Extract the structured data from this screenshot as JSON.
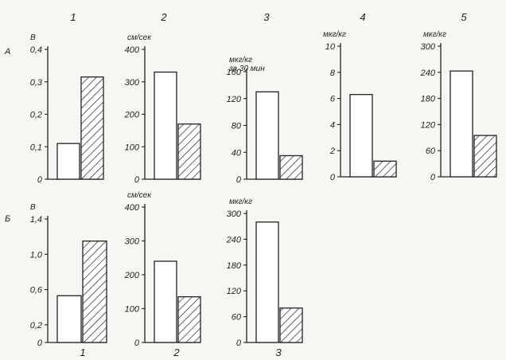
{
  "colors": {
    "ink": "#222222",
    "paper": "#f7f6f2",
    "bar_open": "#ffffff"
  },
  "row_labels": [
    "А",
    "Б"
  ],
  "bottom_numbers": [
    "1",
    "2",
    "3"
  ],
  "chart_data": [
    {
      "type": "bar",
      "row": "А",
      "number": "1",
      "ylabel": "В",
      "ylim": [
        0,
        0.4
      ],
      "ticks": [
        "0",
        "0,1",
        "0,2",
        "0,3",
        "0,4"
      ],
      "series": [
        {
          "pattern": "open",
          "values": [
            0.11
          ]
        },
        {
          "pattern": "hatched",
          "values": [
            0.315
          ]
        }
      ]
    },
    {
      "type": "bar",
      "row": "А",
      "number": "2",
      "ylabel": "см/сек",
      "ylim": [
        0,
        400
      ],
      "ticks": [
        "0",
        "100",
        "200",
        "300",
        "400"
      ],
      "series": [
        {
          "pattern": "open",
          "values": [
            330
          ]
        },
        {
          "pattern": "hatched",
          "values": [
            170
          ]
        }
      ]
    },
    {
      "type": "bar",
      "row": "А",
      "number": "3",
      "ylabel": "мкг/кг",
      "ylabel2": "за 30 мин",
      "ylim": [
        0,
        160
      ],
      "ticks": [
        "0",
        "40",
        "80",
        "120",
        "160"
      ],
      "series": [
        {
          "pattern": "open",
          "values": [
            130
          ]
        },
        {
          "pattern": "hatched",
          "values": [
            35
          ]
        }
      ]
    },
    {
      "type": "bar",
      "row": "А",
      "number": "4",
      "ylabel": "мкг/кг",
      "ylim": [
        0,
        10
      ],
      "ticks": [
        "0",
        "2",
        "4",
        "6",
        "8",
        "10"
      ],
      "series": [
        {
          "pattern": "open",
          "values": [
            6.3
          ]
        },
        {
          "pattern": "hatched",
          "values": [
            1.2
          ]
        }
      ]
    },
    {
      "type": "bar",
      "row": "А",
      "number": "5",
      "ylabel": "мкг/кг",
      "ylim": [
        0,
        300
      ],
      "ticks": [
        "0",
        "60",
        "120",
        "180",
        "240",
        "300"
      ],
      "series": [
        {
          "pattern": "open",
          "values": [
            243
          ]
        },
        {
          "pattern": "hatched",
          "values": [
            95
          ]
        }
      ]
    },
    {
      "type": "bar",
      "row": "Б",
      "number": "1",
      "ylabel": "В",
      "ylim": [
        0,
        1.4
      ],
      "ticks": [
        "0",
        "0,2",
        "0,6",
        "1,0",
        "1,4"
      ],
      "tick_values": [
        0,
        0.2,
        0.6,
        1.0,
        1.4
      ],
      "series": [
        {
          "pattern": "open",
          "values": [
            0.53
          ]
        },
        {
          "pattern": "hatched",
          "values": [
            1.15
          ]
        }
      ]
    },
    {
      "type": "bar",
      "row": "Б",
      "number": "2",
      "ylabel": "см/сек",
      "ylim": [
        0,
        400
      ],
      "ticks": [
        "0",
        "100",
        "200",
        "300",
        "400"
      ],
      "series": [
        {
          "pattern": "open",
          "values": [
            240
          ]
        },
        {
          "pattern": "hatched",
          "values": [
            135
          ]
        }
      ]
    },
    {
      "type": "bar",
      "row": "Б",
      "number": "3",
      "ylabel": "мкг/кг",
      "ylim": [
        0,
        300
      ],
      "ticks": [
        "0",
        "60",
        "120",
        "180",
        "240",
        "300"
      ],
      "series": [
        {
          "pattern": "open",
          "values": [
            280
          ]
        },
        {
          "pattern": "hatched",
          "values": [
            80
          ]
        }
      ]
    }
  ]
}
